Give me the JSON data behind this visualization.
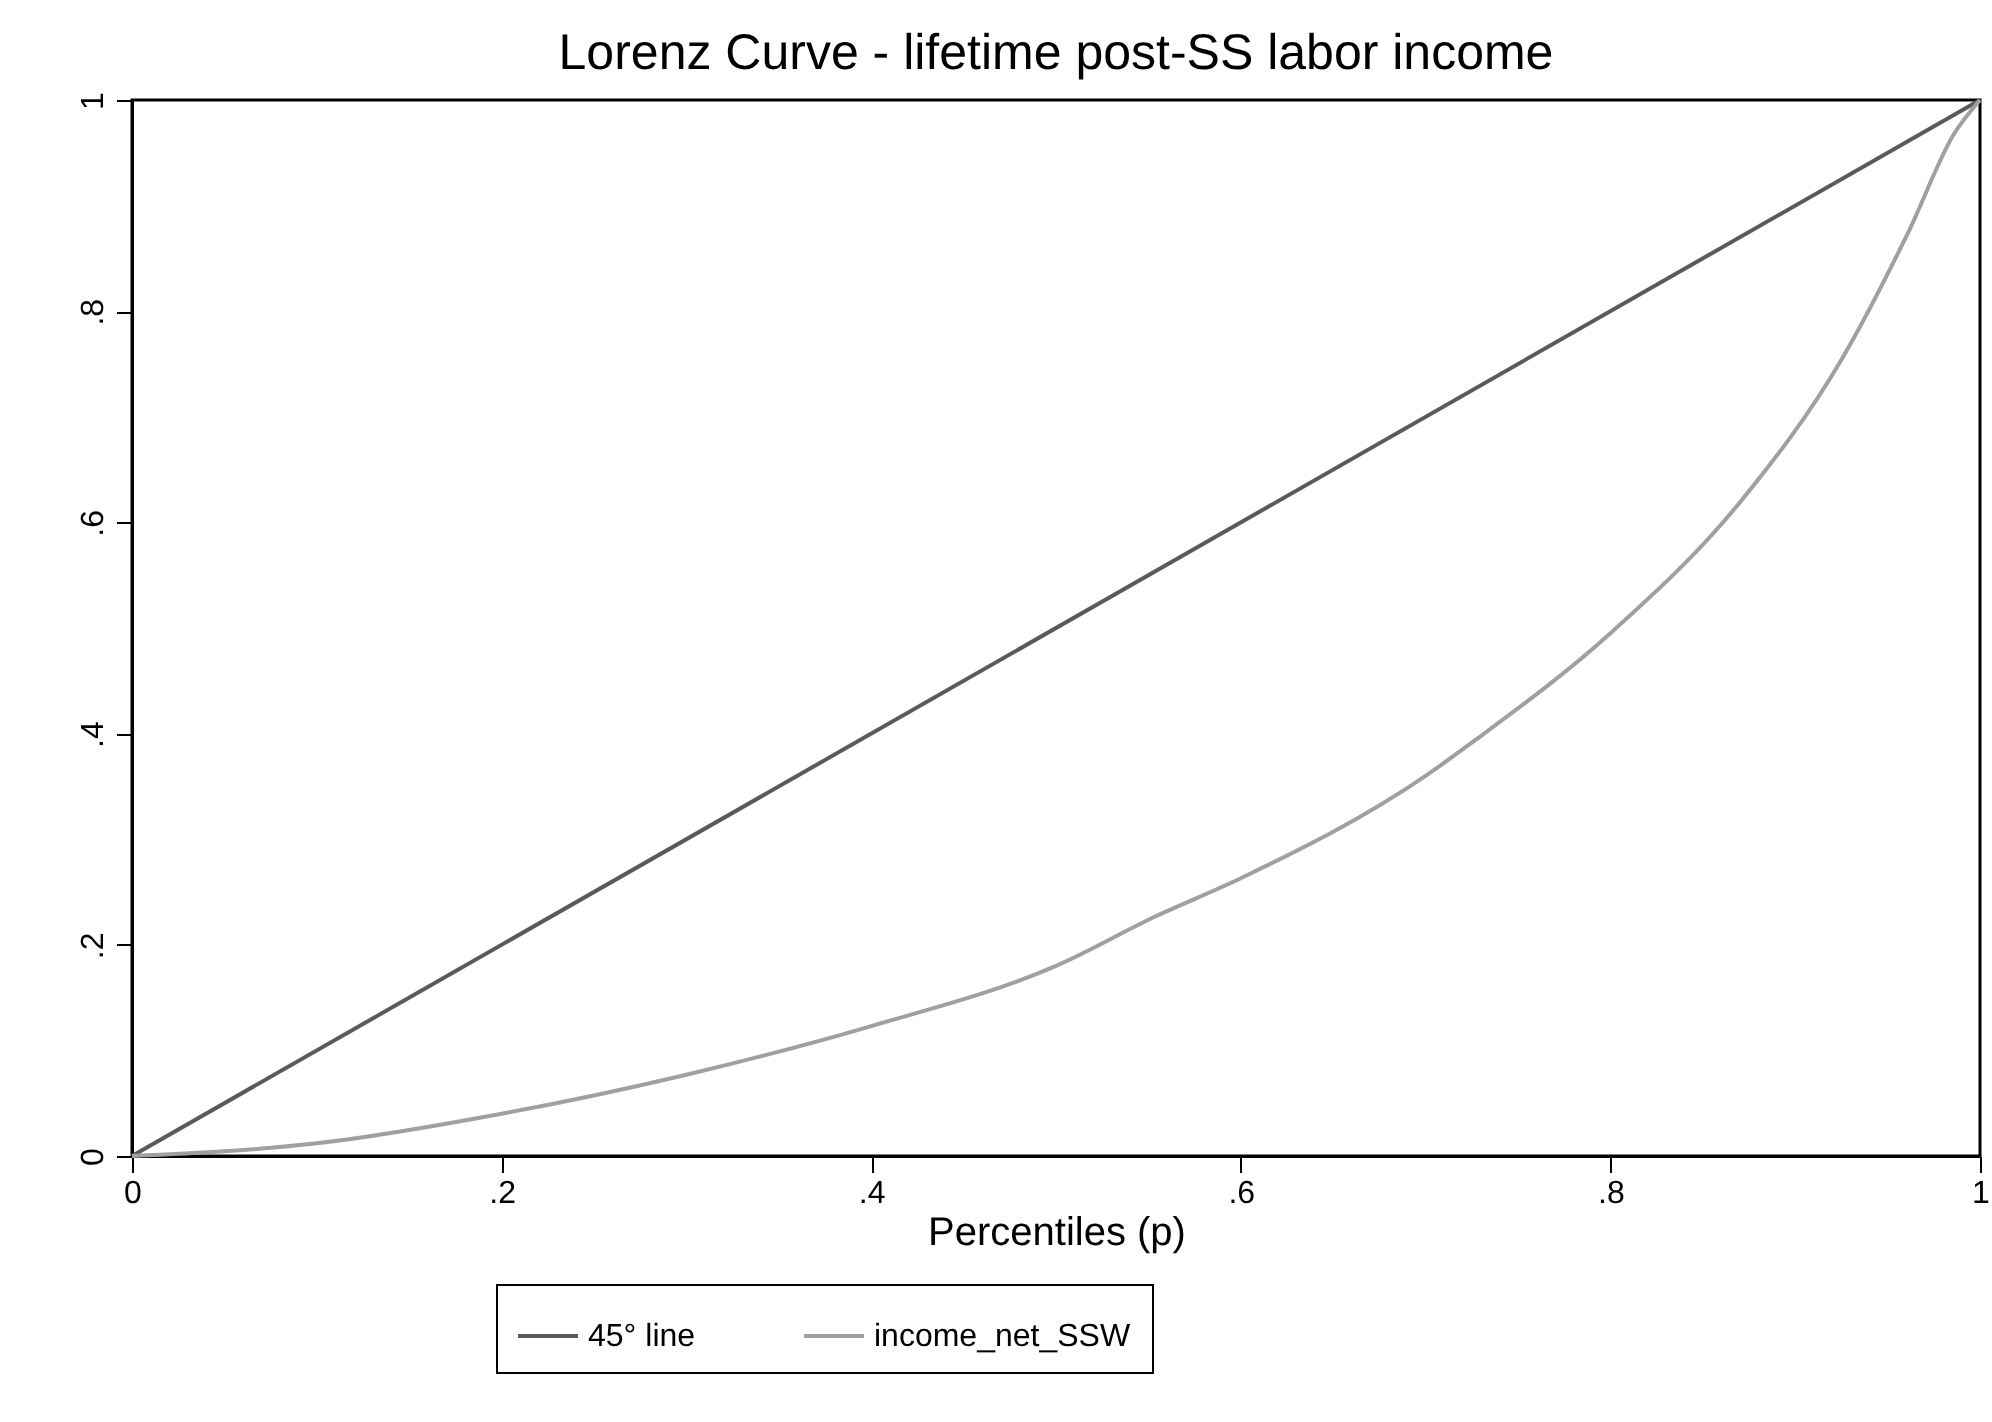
{
  "chart_data": {
    "type": "line",
    "title": "Lorenz Curve - lifetime post-SS labor income",
    "xlabel": "Percentiles (p)",
    "xlim": [
      0,
      1
    ],
    "ylim": [
      0,
      1
    ],
    "xticks": [
      0,
      {
        "value": 0.2,
        "label": ".2"
      },
      {
        "value": 0.4,
        "label": ".4"
      },
      {
        "value": 0.6,
        "label": ".6"
      },
      {
        "value": 0.8,
        "label": ".8"
      },
      1
    ],
    "yticks": [
      0,
      {
        "value": 0.2,
        "label": ".2"
      },
      {
        "value": 0.4,
        "label": ".4"
      },
      {
        "value": 0.6,
        "label": ".6"
      },
      {
        "value": 0.8,
        "label": ".8"
      },
      1
    ],
    "series": [
      {
        "name": "45° line",
        "color": "#5a5a5a",
        "x": [
          0,
          1
        ],
        "values": [
          0,
          1
        ]
      },
      {
        "name": "income_net_SSW",
        "color": "#a0a0a0",
        "x": [
          0,
          0.1,
          0.2,
          0.3,
          0.4,
          0.5,
          0.554,
          0.6,
          0.7,
          0.727,
          0.8,
          0.871,
          0.925,
          0.961,
          0.986,
          1
        ],
        "values": [
          0,
          0.012,
          0.04,
          0.077,
          0.123,
          0.18,
          0.227,
          0.263,
          0.36,
          0.394,
          0.495,
          0.621,
          0.754,
          0.874,
          0.968,
          1
        ]
      }
    ],
    "legend": "bottom",
    "grid": false,
    "marker": "none",
    "line_style": "solid"
  }
}
